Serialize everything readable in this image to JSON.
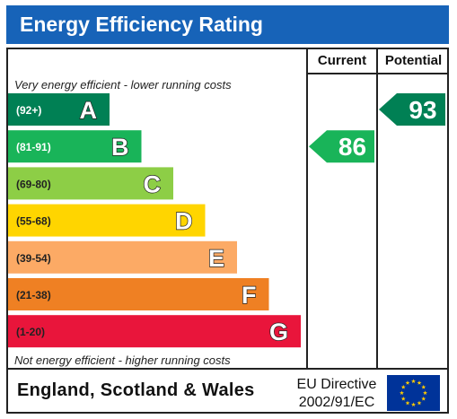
{
  "chart_data": {
    "type": "bar",
    "title": "Energy Efficiency Rating",
    "columns": [
      "Current",
      "Potential"
    ],
    "top_note": "Very energy efficient - lower running costs",
    "bottom_note": "Not energy efficient - higher running costs",
    "bands": [
      {
        "letter": "A",
        "range": "(92+)",
        "color": "#008054"
      },
      {
        "letter": "B",
        "range": "(81-91)",
        "color": "#19b459"
      },
      {
        "letter": "C",
        "range": "(69-80)",
        "color": "#8dce46"
      },
      {
        "letter": "D",
        "range": "(55-68)",
        "color": "#ffd500"
      },
      {
        "letter": "E",
        "range": "(39-54)",
        "color": "#fcaa65"
      },
      {
        "letter": "F",
        "range": "(21-38)",
        "color": "#ef8023"
      },
      {
        "letter": "G",
        "range": "(1-20)",
        "color": "#e9153b"
      }
    ],
    "current": {
      "value": 86,
      "band": "B",
      "color": "#19b459"
    },
    "potential": {
      "value": 93,
      "band": "A",
      "color": "#008054"
    }
  },
  "footer": {
    "country": "England, Scotland & Wales",
    "directive_line1": "EU Directive",
    "directive_line2": "2002/91/EC"
  },
  "colors": {
    "header": "#1763b8",
    "flag": "#003399",
    "stars": "#ffcc00"
  }
}
